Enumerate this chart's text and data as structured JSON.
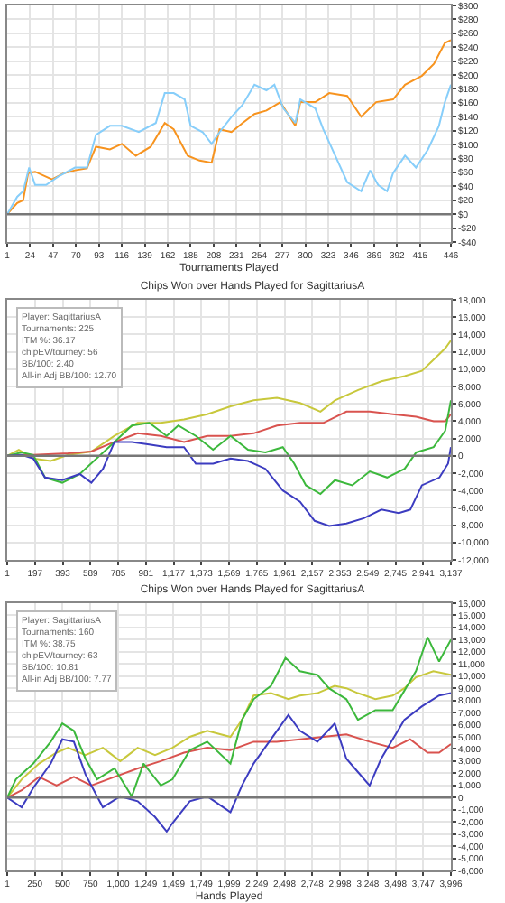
{
  "chart_data": [
    {
      "type": "line",
      "xlabel": "Tournaments Played",
      "grid": true,
      "tick_labels": "xy",
      "xlim": [
        1,
        446
      ],
      "xticks": [
        1,
        24,
        47,
        70,
        93,
        116,
        139,
        162,
        185,
        208,
        231,
        254,
        277,
        300,
        323,
        346,
        369,
        392,
        415,
        446
      ],
      "ylim": [
        -40,
        300
      ],
      "yticks": [
        {
          "value": 300,
          "label": "$300"
        },
        {
          "value": 280,
          "label": "$280"
        },
        {
          "value": 260,
          "label": "$260"
        },
        {
          "value": 240,
          "label": "$240"
        },
        {
          "value": 220,
          "label": "$220"
        },
        {
          "value": 200,
          "label": "$200"
        },
        {
          "value": 180,
          "label": "$180"
        },
        {
          "value": 160,
          "label": "$160"
        },
        {
          "value": 140,
          "label": "$140"
        },
        {
          "value": 120,
          "label": "$120"
        },
        {
          "value": 100,
          "label": "$100"
        },
        {
          "value": 80,
          "label": "$80"
        },
        {
          "value": 60,
          "label": "$60"
        },
        {
          "value": 40,
          "label": "$40"
        },
        {
          "value": 20,
          "label": "$20"
        },
        {
          "value": 0,
          "label": "$0"
        },
        {
          "value": -20,
          "label": "-$20"
        },
        {
          "value": -40,
          "label": "-$40"
        }
      ],
      "ref_lines": [
        {
          "axis": "y",
          "value": 0,
          "color": "#777777"
        }
      ],
      "series": [
        {
          "color": "#f7931e",
          "x": [
            1,
            11,
            17,
            22,
            29,
            46,
            58,
            69,
            81,
            90,
            104,
            116,
            130,
            145,
            159,
            168,
            182,
            194,
            206,
            214,
            226,
            237,
            249,
            261,
            275,
            290,
            295,
            310,
            324,
            342,
            356,
            371,
            388,
            400,
            417,
            429,
            440,
            446
          ],
          "values": [
            0,
            16,
            20,
            59,
            61,
            50,
            59,
            63,
            66,
            97,
            93,
            101,
            84,
            97,
            131,
            122,
            84,
            77,
            74,
            122,
            118,
            131,
            144,
            149,
            161,
            127,
            161,
            161,
            174,
            170,
            140,
            161,
            165,
            186,
            199,
            216,
            246,
            250
          ]
        },
        {
          "color": "#87cefa",
          "x": [
            1,
            11,
            17,
            23,
            29,
            40,
            52,
            69,
            81,
            90,
            104,
            116,
            133,
            150,
            159,
            168,
            179,
            185,
            197,
            206,
            214,
            226,
            237,
            249,
            261,
            269,
            278,
            290,
            295,
            310,
            318,
            330,
            342,
            356,
            365,
            373,
            382,
            388,
            400,
            411,
            423,
            434,
            440,
            446
          ],
          "values": [
            0,
            25,
            33,
            67,
            42,
            42,
            54,
            67,
            67,
            114,
            127,
            127,
            118,
            131,
            174,
            174,
            165,
            127,
            118,
            101,
            118,
            140,
            157,
            186,
            178,
            186,
            152,
            131,
            165,
            152,
            122,
            84,
            46,
            33,
            63,
            42,
            33,
            59,
            84,
            67,
            93,
            127,
            161,
            186
          ]
        }
      ]
    },
    {
      "type": "line",
      "title": "Chips Won over Hands Played for SagittariusA",
      "grid": true,
      "xlim": [
        1,
        3137
      ],
      "xticks": [
        1,
        {
          "value": 197,
          "label": "197"
        },
        {
          "value": 393,
          "label": "393"
        },
        {
          "value": 589,
          "label": "589"
        },
        {
          "value": 785,
          "label": "785"
        },
        {
          "value": 981,
          "label": "981"
        },
        {
          "value": 1177,
          "label": "1,177"
        },
        {
          "value": 1373,
          "label": "1,373"
        },
        {
          "value": 1569,
          "label": "1,569"
        },
        {
          "value": 1765,
          "label": "1,765"
        },
        {
          "value": 1961,
          "label": "1,961"
        },
        {
          "value": 2157,
          "label": "2,157"
        },
        {
          "value": 2353,
          "label": "2,353"
        },
        {
          "value": 2549,
          "label": "2,549"
        },
        {
          "value": 2745,
          "label": "2,745"
        },
        {
          "value": 2941,
          "label": "2,941"
        },
        {
          "value": 3137,
          "label": "3,137"
        }
      ],
      "ylim": [
        -12000,
        18000
      ],
      "yticks": [
        {
          "value": 18000,
          "label": "18,000"
        },
        {
          "value": 16000,
          "label": "16,000"
        },
        {
          "value": 14000,
          "label": "14,000"
        },
        {
          "value": 12000,
          "label": "12,000"
        },
        {
          "value": 10000,
          "label": "10,000"
        },
        {
          "value": 8000,
          "label": "8,000"
        },
        {
          "value": 6000,
          "label": "6,000"
        },
        {
          "value": 4000,
          "label": "4,000"
        },
        {
          "value": 2000,
          "label": "2,000"
        },
        0,
        {
          "value": -2000,
          "label": "-2,000"
        },
        {
          "value": -4000,
          "label": "-4,000"
        },
        {
          "value": -6000,
          "label": "-6,000"
        },
        {
          "value": -8000,
          "label": "-8,000"
        },
        {
          "value": -10000,
          "label": "-10,000"
        },
        {
          "value": -12000,
          "label": "-12,000"
        }
      ],
      "annotations": [
        "Player: SagittariusA",
        "Tournaments: 225",
        "ITM %: 36.17",
        "chipEV/tourney: 56",
        "BB/100: 2.40",
        "All-in Adj BB/100: 12.70"
      ],
      "ref_lines": [
        {
          "axis": "y",
          "value": 0,
          "color": "#777777"
        }
      ],
      "series": [
        {
          "color": "#c8c83c",
          "x": [
            1,
            83,
            185,
            308,
            431,
            596,
            759,
            923,
            1087,
            1251,
            1415,
            1580,
            1743,
            1908,
            2071,
            2215,
            2318,
            2482,
            2646,
            2810,
            2932,
            3015,
            3097,
            3137
          ],
          "values": [
            0,
            700,
            -300,
            -600,
            100,
            500,
            2300,
            3800,
            3800,
            4200,
            4800,
            5700,
            6400,
            6700,
            6100,
            5100,
            6400,
            7600,
            8600,
            9200,
            9800,
            11100,
            12400,
            13300
          ]
        },
        {
          "color": "#d9534f",
          "x": [
            1,
            185,
            431,
            596,
            759,
            923,
            1087,
            1251,
            1415,
            1580,
            1743,
            1908,
            2071,
            2236,
            2399,
            2564,
            2728,
            2892,
            3015,
            3097,
            3137
          ],
          "values": [
            0,
            100,
            300,
            500,
            1600,
            2600,
            2300,
            1600,
            2300,
            2300,
            2600,
            3500,
            3800,
            3800,
            5100,
            5100,
            4800,
            4500,
            4000,
            4000,
            4800
          ]
        },
        {
          "color": "#3cb83c",
          "x": [
            1,
            104,
            185,
            268,
            390,
            514,
            596,
            678,
            759,
            882,
            1005,
            1128,
            1210,
            1334,
            1456,
            1580,
            1703,
            1826,
            1949,
            2030,
            2112,
            2215,
            2318,
            2440,
            2564,
            2686,
            2810,
            2892,
            3015,
            3097,
            3137
          ],
          "values": [
            0,
            400,
            100,
            -2500,
            -3100,
            -2100,
            null,
            null,
            1600,
            3500,
            3800,
            2300,
            3500,
            2300,
            700,
            2300,
            700,
            400,
            1000,
            -900,
            -3400,
            -4400,
            -2800,
            -3400,
            -1800,
            -2500,
            -1500,
            400,
            1000,
            2900,
            6400
          ]
        },
        {
          "color": "#3c3cc0",
          "x": [
            1,
            104,
            185,
            268,
            390,
            514,
            596,
            678,
            759,
            882,
            1005,
            1128,
            1251,
            1334,
            1456,
            1580,
            1703,
            1826,
            1949,
            2071,
            2174,
            2277,
            2399,
            2522,
            2646,
            2769,
            2850,
            2932,
            3056,
            3117,
            3137
          ],
          "values": [
            0,
            100,
            -300,
            -2500,
            -2800,
            -2100,
            -3100,
            -1500,
            1600,
            1600,
            1300,
            1000,
            1000,
            -900,
            -900,
            -300,
            -600,
            -1500,
            -4000,
            -5300,
            -7500,
            -8100,
            -7800,
            -7200,
            -6200,
            -6600,
            -6200,
            -3400,
            -2500,
            -900,
            1000
          ]
        }
      ]
    },
    {
      "type": "line",
      "title": "Chips Won over Hands Played for SagittariusA",
      "xlabel": "Hands Played",
      "grid": true,
      "xlim": [
        1,
        3996
      ],
      "xticks": [
        1,
        250,
        500,
        750,
        {
          "value": 1000,
          "label": "1,000"
        },
        {
          "value": 1249,
          "label": "1,249"
        },
        {
          "value": 1499,
          "label": "1,499"
        },
        {
          "value": 1749,
          "label": "1,749"
        },
        {
          "value": 1999,
          "label": "1,999"
        },
        {
          "value": 2249,
          "label": "2,249"
        },
        {
          "value": 2498,
          "label": "2,498"
        },
        {
          "value": 2748,
          "label": "2,748"
        },
        {
          "value": 2998,
          "label": "2,998"
        },
        {
          "value": 3248,
          "label": "3,248"
        },
        {
          "value": 3498,
          "label": "3,498"
        },
        {
          "value": 3747,
          "label": "3,747"
        },
        {
          "value": 3996,
          "label": "3,996"
        }
      ],
      "ylim": [
        -6000,
        16000
      ],
      "yticks": [
        {
          "value": 16000,
          "label": "16,000"
        },
        {
          "value": 15000,
          "label": "15,000"
        },
        {
          "value": 14000,
          "label": "14,000"
        },
        {
          "value": 13000,
          "label": "13,000"
        },
        {
          "value": 12000,
          "label": "12,000"
        },
        {
          "value": 11000,
          "label": "11,000"
        },
        {
          "value": 10000,
          "label": "10,000"
        },
        {
          "value": 9000,
          "label": "9,000"
        },
        {
          "value": 8000,
          "label": "8,000"
        },
        {
          "value": 7000,
          "label": "7,000"
        },
        {
          "value": 6000,
          "label": "6,000"
        },
        {
          "value": 5000,
          "label": "5,000"
        },
        {
          "value": 4000,
          "label": "4,000"
        },
        {
          "value": 3000,
          "label": "3,000"
        },
        {
          "value": 2000,
          "label": "2,000"
        },
        {
          "value": 1000,
          "label": "1,000"
        },
        0,
        {
          "value": -1000,
          "label": "-1,000"
        },
        {
          "value": -2000,
          "label": "-2,000"
        },
        {
          "value": -3000,
          "label": "-3,000"
        },
        {
          "value": -4000,
          "label": "-4,000"
        },
        {
          "value": -5000,
          "label": "-5,000"
        },
        {
          "value": -6000,
          "label": "-6,000"
        }
      ],
      "annotations": [
        "Player: SagittariusA",
        "Tournaments: 160",
        "ITM %: 38.75",
        "chipEV/tourney: 63",
        "BB/100: 10.81",
        "All-in Adj BB/100: 7.77"
      ],
      "ref_lines": [
        {
          "axis": "y",
          "value": 0,
          "color": "#777777"
        }
      ],
      "series": [
        {
          "color": "#c8c83c",
          "x": [
            1,
            131,
            288,
            445,
            549,
            706,
            862,
            1019,
            1176,
            1332,
            1489,
            1645,
            1802,
            2011,
            2115,
            2220,
            2376,
            2533,
            2637,
            2794,
            2846,
            2950,
            3055,
            3159,
            3316,
            3472,
            3577,
            3681,
            3838,
            3996
          ],
          "values": [
            0,
            1500,
            2800,
            3700,
            4100,
            3500,
            4100,
            3000,
            4100,
            3500,
            4100,
            5000,
            5500,
            5000,
            6400,
            8400,
            8600,
            8100,
            8400,
            8600,
            8800,
            9200,
            9000,
            8600,
            8100,
            8400,
            9000,
            9900,
            10400,
            10100
          ]
        },
        {
          "color": "#d9534f",
          "x": [
            1,
            131,
            288,
            445,
            601,
            758,
            967,
            1176,
            1384,
            1593,
            1802,
            2011,
            2220,
            2428,
            2637,
            2846,
            3055,
            3264,
            3472,
            3629,
            3786,
            3890,
            3996
          ],
          "values": [
            0,
            600,
            1700,
            1000,
            1700,
            1000,
            1700,
            2400,
            3000,
            3700,
            4100,
            3900,
            4600,
            4600,
            4800,
            5000,
            5200,
            4600,
            4100,
            4800,
            3700,
            3700,
            4400
          ]
        },
        {
          "color": "#3cb83c",
          "x": [
            1,
            79,
            236,
            393,
            497,
            601,
            706,
            810,
            967,
            1123,
            1228,
            1384,
            1489,
            1645,
            1802,
            2011,
            2115,
            2220,
            2376,
            2507,
            2637,
            2794,
            2898,
            3055,
            3159,
            3316,
            3472,
            3577,
            3681,
            3786,
            3890,
            3996
          ],
          "values": [
            0,
            1500,
            2800,
            4600,
            6100,
            5500,
            3200,
            1500,
            2400,
            100,
            2800,
            1000,
            1500,
            3900,
            4600,
            2800,
            6400,
            8100,
            9200,
            11500,
            10400,
            10100,
            9000,
            8100,
            6400,
            7200,
            7200,
            8800,
            10400,
            13200,
            11200,
            13000
          ]
        },
        {
          "color": "#3c3cc0",
          "x": [
            1,
            131,
            236,
            393,
            497,
            601,
            706,
            862,
            1019,
            1176,
            1332,
            1437,
            1489,
            1645,
            1802,
            2011,
            2115,
            2220,
            2376,
            2533,
            2637,
            2794,
            2950,
            3055,
            3159,
            3264,
            3368,
            3472,
            3577,
            3733,
            3890,
            3996
          ],
          "values": [
            0,
            -800,
            800,
            2800,
            4800,
            4600,
            1900,
            -800,
            100,
            -300,
            -1600,
            -2800,
            -2100,
            -300,
            100,
            -1200,
            1000,
            2800,
            4800,
            6800,
            5500,
            4600,
            6100,
            3200,
            2100,
            1000,
            3200,
            4800,
            6400,
            7500,
            8400,
            8600
          ]
        }
      ]
    }
  ]
}
